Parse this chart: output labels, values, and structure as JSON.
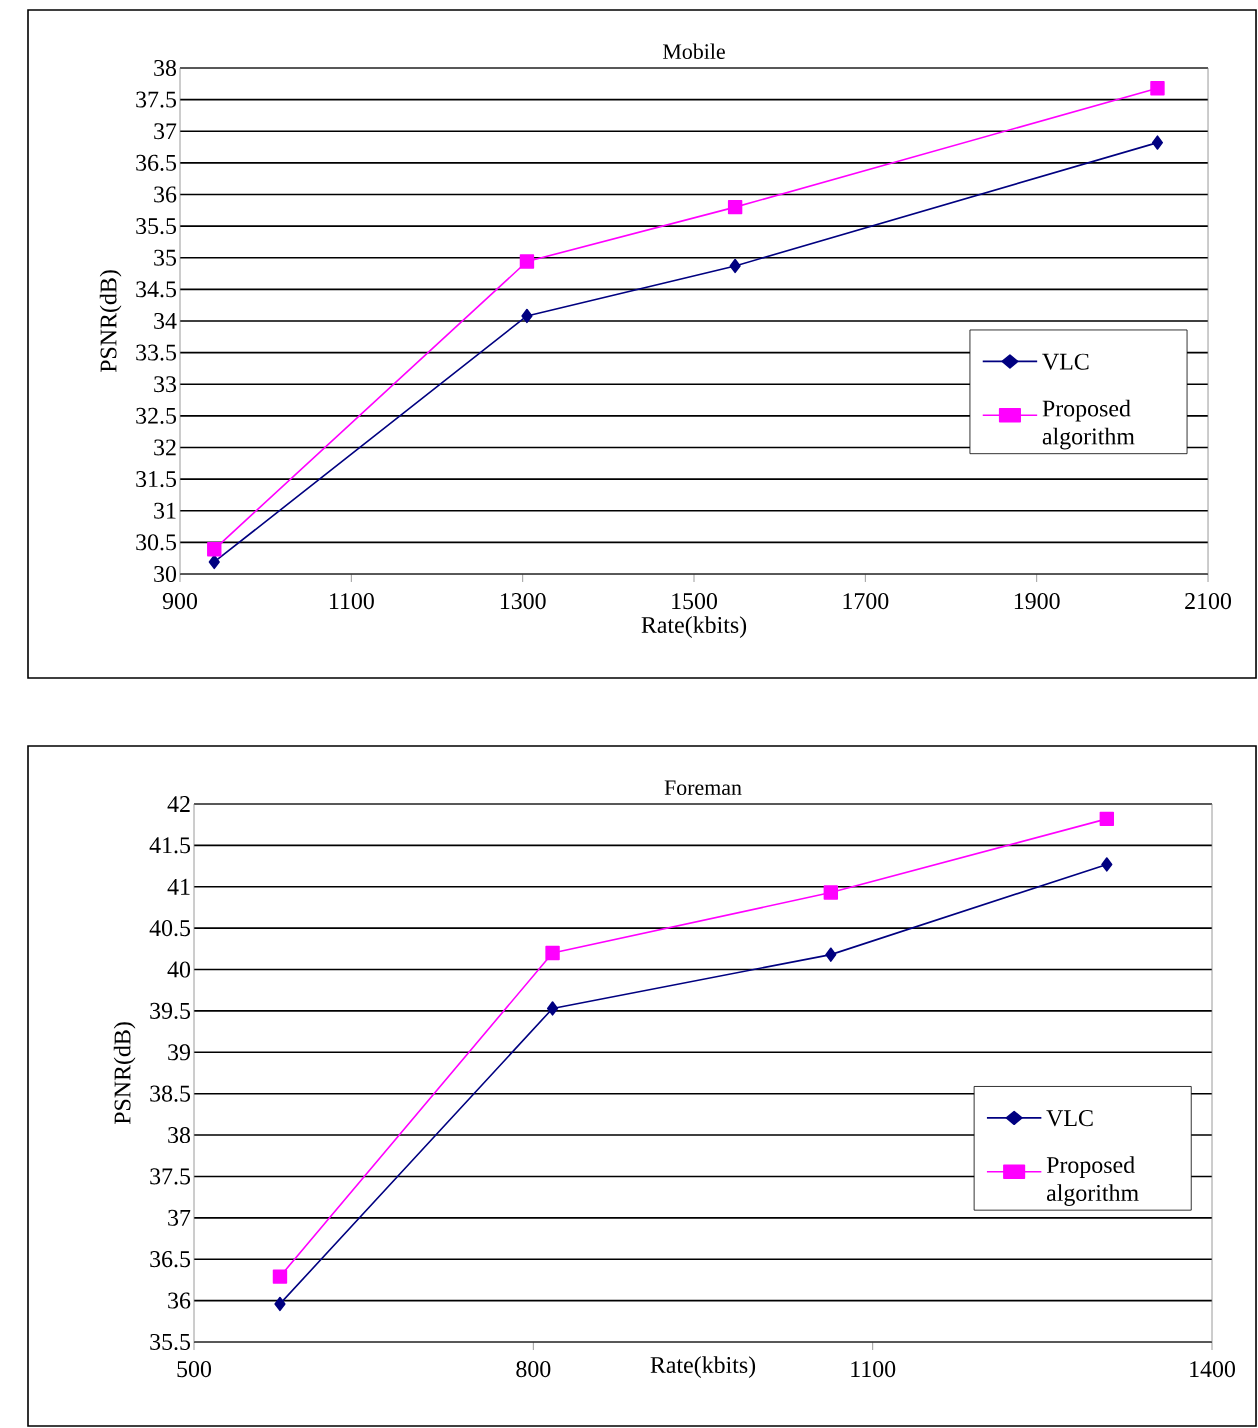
{
  "chart_data": [
    {
      "type": "line",
      "title": "Mobile",
      "xlabel": "Rate(kbits)",
      "ylabel": "PSNR(dB)",
      "xlim": [
        900,
        2100
      ],
      "xticks": [
        900,
        1100,
        1300,
        1500,
        1700,
        1900,
        2100
      ],
      "ylim": [
        30,
        38
      ],
      "yticks": [
        30,
        30.5,
        31,
        31.5,
        32,
        32.5,
        33,
        33.5,
        34,
        34.5,
        35,
        35.5,
        36,
        36.5,
        37,
        37.5,
        38
      ],
      "grid": "y",
      "legend": "right",
      "series": [
        {
          "name": "VLC",
          "color": "#000080",
          "marker": "diamond",
          "x": [
            940,
            1305,
            1548,
            2041
          ],
          "values": [
            30.19,
            34.08,
            34.87,
            36.82
          ]
        },
        {
          "name": "Proposed algorithm",
          "color": "#ff00ff",
          "marker": "square",
          "x": [
            940,
            1305,
            1548,
            2041
          ],
          "values": [
            30.39,
            34.94,
            35.8,
            37.68
          ]
        }
      ]
    },
    {
      "type": "line",
      "title": "Foreman",
      "xlabel": "Rate(kbits)",
      "ylabel": "PSNR(dB)",
      "xlim": [
        500,
        1400
      ],
      "xticks": [
        500,
        800,
        1100,
        1400
      ],
      "ylim": [
        35.5,
        42
      ],
      "yticks": [
        35.5,
        36,
        36.5,
        37,
        37.5,
        38,
        38.5,
        39,
        39.5,
        40,
        40.5,
        41,
        41.5,
        42
      ],
      "grid": "y",
      "legend": "right",
      "series": [
        {
          "name": "VLC",
          "color": "#000080",
          "marker": "diamond",
          "x": [
            576,
            817,
            1063,
            1307
          ],
          "values": [
            35.96,
            39.53,
            40.18,
            41.27
          ]
        },
        {
          "name": "Proposed algorithm",
          "color": "#ff00ff",
          "marker": "square",
          "x": [
            576,
            817,
            1063,
            1307
          ],
          "values": [
            36.29,
            40.2,
            40.93,
            41.82
          ]
        }
      ]
    }
  ]
}
